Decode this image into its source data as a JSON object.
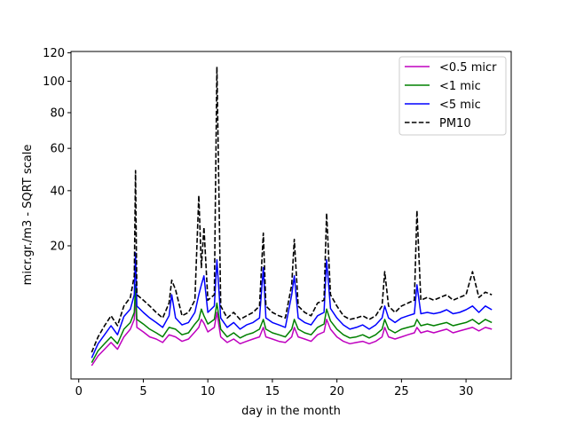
{
  "chart_data": {
    "type": "line",
    "title": "",
    "xlabel": "day in the month",
    "ylabel": "micr.gr./m3 - SQRT scale",
    "y_scale": "sqrt",
    "xlim": [
      -0.6,
      33.5
    ],
    "ylim": [
      0,
      121
    ],
    "x_ticks": [
      0,
      5,
      10,
      15,
      20,
      25,
      30
    ],
    "y_ticks": [
      20,
      40,
      60,
      80,
      100,
      120
    ],
    "grid": false,
    "legend_position": "top-right",
    "series": [
      {
        "name": "<0.5 micr",
        "color": "#bf00bf",
        "style": "solid",
        "x": [
          1.0,
          1.5,
          2.0,
          2.5,
          3.0,
          3.5,
          4.0,
          4.3,
          4.4,
          4.5,
          5.0,
          5.5,
          6.0,
          6.5,
          7.0,
          7.5,
          8.0,
          8.5,
          9.0,
          9.3,
          9.5,
          9.7,
          10.0,
          10.5,
          10.7,
          11.0,
          11.5,
          12.0,
          12.5,
          13.0,
          13.5,
          14.0,
          14.3,
          14.5,
          15.0,
          15.5,
          16.0,
          16.5,
          16.7,
          17.0,
          17.5,
          18.0,
          18.5,
          19.0,
          19.2,
          19.5,
          20.0,
          20.5,
          21.0,
          21.5,
          22.0,
          22.5,
          23.0,
          23.5,
          23.7,
          24.0,
          24.5,
          25.0,
          25.5,
          26.0,
          26.2,
          26.5,
          27.0,
          27.5,
          28.0,
          28.5,
          29.0,
          29.5,
          30.0,
          30.5,
          31.0,
          31.5,
          32.0
        ],
        "values": [
          0.2,
          0.6,
          1.0,
          1.5,
          1.0,
          2.0,
          2.8,
          4.0,
          8.0,
          3.0,
          2.5,
          2.0,
          1.8,
          1.5,
          2.2,
          2.0,
          1.6,
          1.8,
          2.5,
          3.0,
          4.0,
          3.5,
          2.5,
          3.0,
          5.0,
          2.0,
          1.5,
          1.8,
          1.4,
          1.6,
          1.8,
          2.0,
          3.0,
          2.0,
          1.8,
          1.6,
          1.5,
          2.0,
          3.0,
          2.0,
          1.8,
          1.6,
          2.2,
          2.5,
          4.0,
          2.8,
          2.0,
          1.6,
          1.4,
          1.5,
          1.6,
          1.4,
          1.6,
          2.0,
          3.0,
          2.0,
          1.8,
          2.0,
          2.2,
          2.4,
          3.0,
          2.4,
          2.6,
          2.4,
          2.6,
          2.8,
          2.4,
          2.6,
          2.8,
          3.0,
          2.6,
          3.0,
          2.8
        ]
      },
      {
        "name": "<1 mic",
        "color": "#008000",
        "style": "solid",
        "x": [
          1.0,
          1.5,
          2.0,
          2.5,
          3.0,
          3.5,
          4.0,
          4.3,
          4.4,
          4.5,
          5.0,
          5.5,
          6.0,
          6.5,
          7.0,
          7.5,
          8.0,
          8.5,
          9.0,
          9.3,
          9.5,
          9.7,
          10.0,
          10.5,
          10.7,
          11.0,
          11.5,
          12.0,
          12.5,
          13.0,
          13.5,
          14.0,
          14.3,
          14.5,
          15.0,
          15.5,
          16.0,
          16.5,
          16.7,
          17.0,
          17.5,
          18.0,
          18.5,
          19.0,
          19.2,
          19.5,
          20.0,
          20.5,
          21.0,
          21.5,
          22.0,
          22.5,
          23.0,
          23.5,
          23.7,
          24.0,
          24.5,
          25.0,
          25.5,
          26.0,
          26.2,
          26.5,
          27.0,
          27.5,
          28.0,
          28.5,
          29.0,
          29.5,
          30.0,
          30.5,
          31.0,
          31.5,
          32.0
        ],
        "values": [
          0.3,
          0.9,
          1.4,
          2.0,
          1.4,
          2.8,
          3.6,
          5.0,
          10.0,
          4.0,
          3.4,
          2.8,
          2.4,
          2.0,
          3.0,
          2.8,
          2.2,
          2.4,
          3.4,
          4.0,
          5.5,
          4.5,
          3.4,
          4.0,
          6.5,
          2.8,
          2.0,
          2.4,
          1.9,
          2.2,
          2.4,
          2.8,
          4.0,
          2.8,
          2.4,
          2.2,
          2.0,
          2.8,
          4.0,
          2.8,
          2.4,
          2.2,
          3.0,
          3.4,
          5.5,
          3.8,
          2.8,
          2.2,
          1.9,
          2.0,
          2.2,
          1.9,
          2.2,
          2.8,
          4.0,
          2.8,
          2.4,
          2.8,
          3.0,
          3.2,
          4.0,
          3.2,
          3.4,
          3.2,
          3.4,
          3.6,
          3.2,
          3.4,
          3.6,
          4.0,
          3.4,
          4.0,
          3.6
        ]
      },
      {
        "name": "<5 mic",
        "color": "#0000ff",
        "style": "solid",
        "x": [
          1.0,
          1.5,
          2.0,
          2.5,
          3.0,
          3.5,
          4.0,
          4.3,
          4.4,
          4.5,
          5.0,
          5.5,
          6.0,
          6.5,
          7.0,
          7.2,
          7.5,
          8.0,
          8.5,
          9.0,
          9.3,
          9.5,
          9.7,
          10.0,
          10.5,
          10.7,
          11.0,
          11.5,
          12.0,
          12.5,
          13.0,
          13.5,
          14.0,
          14.3,
          14.5,
          15.0,
          15.5,
          16.0,
          16.5,
          16.7,
          17.0,
          17.5,
          18.0,
          18.5,
          19.0,
          19.2,
          19.5,
          20.0,
          20.5,
          21.0,
          21.5,
          22.0,
          22.5,
          23.0,
          23.5,
          23.7,
          24.0,
          24.5,
          25.0,
          25.5,
          26.0,
          26.2,
          26.5,
          27.0,
          27.5,
          28.0,
          28.5,
          29.0,
          29.5,
          30.0,
          30.5,
          31.0,
          31.5,
          32.0
        ],
        "values": [
          0.5,
          1.4,
          2.2,
          3.2,
          2.2,
          4.4,
          5.5,
          8.0,
          18.0,
          6.0,
          5.0,
          4.2,
          3.6,
          3.0,
          4.5,
          8.0,
          4.2,
          3.3,
          3.6,
          5.0,
          8.0,
          10.0,
          12.0,
          5.0,
          6.0,
          16.0,
          4.2,
          3.0,
          3.6,
          2.8,
          3.3,
          3.6,
          4.2,
          14.0,
          4.2,
          3.6,
          3.3,
          3.0,
          8.0,
          12.0,
          4.2,
          3.6,
          3.3,
          4.5,
          5.0,
          16.0,
          5.6,
          4.2,
          3.3,
          2.8,
          3.0,
          3.3,
          2.8,
          3.3,
          4.2,
          6.0,
          4.2,
          3.6,
          4.2,
          4.5,
          4.8,
          10.0,
          4.8,
          5.0,
          4.8,
          5.0,
          5.4,
          4.8,
          5.0,
          5.4,
          6.0,
          5.0,
          6.0,
          5.4
        ]
      },
      {
        "name": "PM10",
        "color": "#000000",
        "style": "dashed",
        "x": [
          1.0,
          1.5,
          2.0,
          2.5,
          3.0,
          3.5,
          4.0,
          4.3,
          4.4,
          4.5,
          5.0,
          5.5,
          6.0,
          6.5,
          7.0,
          7.2,
          7.5,
          8.0,
          8.5,
          9.0,
          9.3,
          9.5,
          9.7,
          10.0,
          10.5,
          10.7,
          11.0,
          11.5,
          12.0,
          12.5,
          13.0,
          13.5,
          14.0,
          14.3,
          14.5,
          15.0,
          15.5,
          16.0,
          16.5,
          16.7,
          17.0,
          17.5,
          18.0,
          18.5,
          19.0,
          19.2,
          19.5,
          20.0,
          20.5,
          21.0,
          21.5,
          22.0,
          22.5,
          23.0,
          23.5,
          23.7,
          24.0,
          24.5,
          25.0,
          25.5,
          26.0,
          26.2,
          26.5,
          27.0,
          27.5,
          28.0,
          28.5,
          29.0,
          29.5,
          30.0,
          30.5,
          31.0,
          31.5,
          32.0
        ],
        "values": [
          0.8,
          2.0,
          3.2,
          4.5,
          3.2,
          6.0,
          7.5,
          12.0,
          49.0,
          8.0,
          7.0,
          6.0,
          5.0,
          4.2,
          6.5,
          11.0,
          9.0,
          4.5,
          5.0,
          7.0,
          38.0,
          14.0,
          26.0,
          7.0,
          8.0,
          110.0,
          6.0,
          4.2,
          5.0,
          4.0,
          4.5,
          5.0,
          6.0,
          24.0,
          6.0,
          5.0,
          4.5,
          4.2,
          10.0,
          22.0,
          6.0,
          5.0,
          4.5,
          6.5,
          7.0,
          31.0,
          8.0,
          6.0,
          4.5,
          4.0,
          4.2,
          4.5,
          4.0,
          4.5,
          6.0,
          13.0,
          6.0,
          5.0,
          6.0,
          6.5,
          7.0,
          32.0,
          7.0,
          7.5,
          7.0,
          7.5,
          8.0,
          7.0,
          7.5,
          8.0,
          13.0,
          7.5,
          8.5,
          8.0
        ]
      }
    ]
  }
}
